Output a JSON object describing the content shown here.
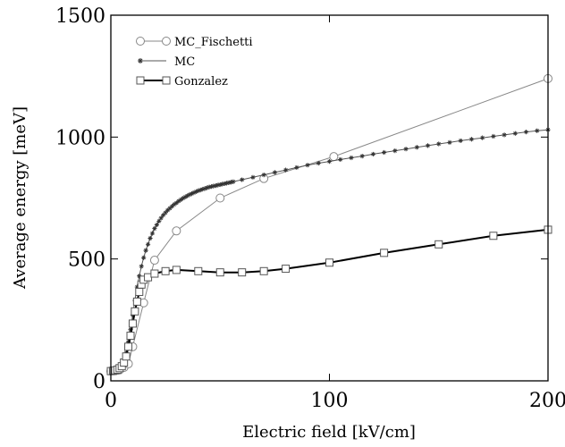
{
  "chart_data": {
    "type": "line",
    "title": "",
    "xlabel": "Electric field [kV/cm]",
    "ylabel": "Average energy [meV]",
    "xlim": [
      0,
      200
    ],
    "ylim": [
      0,
      1500
    ],
    "xticks": [
      0,
      100,
      200
    ],
    "yticks": [
      0,
      500,
      1000,
      1500
    ],
    "grid": false,
    "legend_position": "top-left",
    "series": [
      {
        "name": "MC_Fischetti",
        "marker": "circle",
        "color": "#888888",
        "x": [
          0,
          2,
          4,
          6,
          8,
          10,
          15,
          20,
          30,
          50,
          70,
          102,
          200
        ],
        "y": [
          40,
          42,
          45,
          55,
          70,
          140,
          320,
          495,
          615,
          750,
          830,
          920,
          1240
        ]
      },
      {
        "name": "MC",
        "marker": "star",
        "color": "#555555",
        "x": [
          0,
          1,
          2,
          3,
          4,
          5,
          6,
          7,
          8,
          9,
          10,
          11,
          12,
          13,
          14,
          15,
          16,
          17,
          18,
          19,
          20,
          21,
          22,
          23,
          24,
          25,
          26,
          27,
          28,
          29,
          30,
          31,
          32,
          33,
          34,
          35,
          36,
          37,
          38,
          39,
          40,
          41,
          42,
          43,
          44,
          45,
          46,
          47,
          48,
          49,
          50,
          51,
          52,
          53,
          54,
          55,
          56,
          60,
          65,
          70,
          75,
          80,
          85,
          90,
          95,
          100,
          105,
          110,
          115,
          120,
          125,
          130,
          135,
          140,
          145,
          150,
          155,
          160,
          165,
          170,
          175,
          180,
          185,
          190,
          195,
          200
        ],
        "y": [
          40,
          42,
          45,
          50,
          58,
          68,
          85,
          115,
          160,
          210,
          270,
          330,
          385,
          430,
          470,
          505,
          535,
          560,
          585,
          605,
          625,
          640,
          655,
          668,
          680,
          690,
          700,
          708,
          716,
          724,
          730,
          737,
          743,
          749,
          754,
          759,
          764,
          768,
          772,
          776,
          780,
          783,
          786,
          789,
          792,
          795,
          797,
          799,
          801,
          803,
          805,
          807,
          809,
          811,
          813,
          815,
          817,
          825,
          835,
          845,
          855,
          865,
          875,
          885,
          893,
          900,
          908,
          915,
          922,
          930,
          937,
          944,
          951,
          958,
          965,
          972,
          978,
          985,
          991,
          997,
          1003,
          1009,
          1015,
          1021,
          1026,
          1030
        ]
      },
      {
        "name": "Gonzalez",
        "marker": "square",
        "color": "#000000",
        "x": [
          0,
          1,
          2,
          3,
          4,
          5,
          6,
          7,
          8,
          9,
          10,
          11,
          12,
          13,
          14,
          15,
          17,
          20,
          25,
          30,
          40,
          50,
          60,
          70,
          80,
          100,
          125,
          150,
          175,
          200
        ],
        "y": [
          40,
          41,
          43,
          46,
          52,
          60,
          75,
          100,
          140,
          185,
          235,
          285,
          325,
          365,
          395,
          415,
          425,
          440,
          450,
          455,
          450,
          445,
          445,
          450,
          460,
          485,
          525,
          560,
          595,
          620
        ]
      }
    ]
  }
}
